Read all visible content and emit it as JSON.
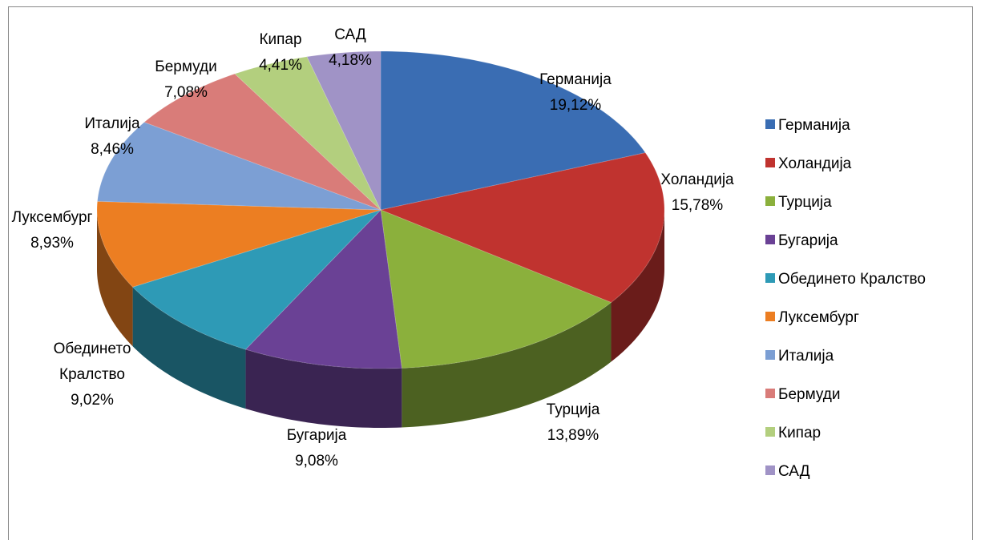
{
  "chart_data": {
    "type": "pie",
    "categories": [
      "Германија",
      "Холандија",
      "Турција",
      "Бугарија",
      "Обединето Кралство",
      "Луксембург",
      "Италија",
      "Бермуди",
      "Кипар",
      "САД"
    ],
    "values": [
      19.12,
      15.78,
      13.89,
      9.08,
      9.02,
      8.93,
      8.46,
      7.08,
      4.41,
      4.18
    ],
    "value_labels": [
      "19,12%",
      "15,78%",
      "13,89%",
      "9,08%",
      "9,02%",
      "8,93%",
      "8,46%",
      "7,08%",
      "4,41%",
      "4,18%"
    ],
    "colors": [
      "#3a6db3",
      "#c0332f",
      "#8bb03c",
      "#6a4195",
      "#2e9ab6",
      "#ec7e22",
      "#7c9fd4",
      "#d97c79",
      "#b3cf7e",
      "#a093c6"
    ],
    "legend": "right"
  }
}
